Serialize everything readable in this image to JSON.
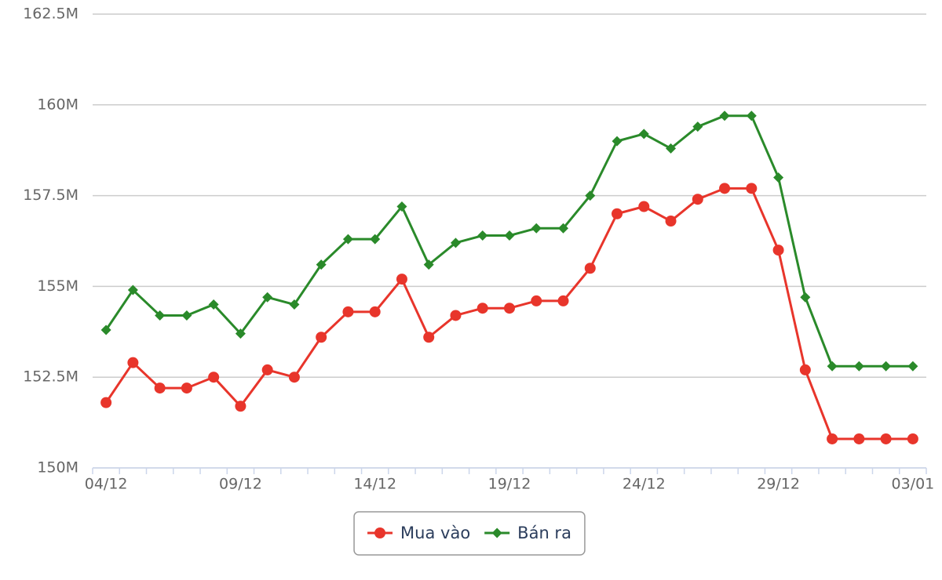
{
  "chart_data": {
    "type": "line",
    "categories": [
      "04/12",
      null,
      null,
      null,
      null,
      "09/12",
      null,
      null,
      null,
      null,
      "14/12",
      null,
      null,
      null,
      null,
      "19/12",
      null,
      null,
      null,
      null,
      "24/12",
      null,
      null,
      null,
      null,
      "29/12",
      null,
      null,
      null,
      null,
      "03/01"
    ],
    "series": [
      {
        "name": "Mua vào",
        "color": "#e8352b",
        "marker": "circle",
        "values": [
          151.8,
          152.9,
          152.2,
          152.2,
          152.5,
          151.7,
          152.7,
          152.5,
          153.6,
          154.3,
          154.3,
          155.2,
          153.6,
          154.2,
          154.4,
          154.4,
          154.6,
          154.6,
          155.5,
          157.0,
          157.2,
          156.8,
          157.4,
          157.7,
          157.7,
          156.0,
          152.7,
          150.8,
          150.8,
          150.8,
          150.8
        ]
      },
      {
        "name": "Bán ra",
        "color": "#2a8a2a",
        "marker": "diamond",
        "values": [
          153.8,
          154.9,
          154.2,
          154.2,
          154.5,
          153.7,
          154.7,
          154.5,
          155.6,
          156.3,
          156.3,
          157.2,
          155.6,
          156.2,
          156.4,
          156.4,
          156.6,
          156.6,
          157.5,
          159.0,
          159.2,
          158.8,
          159.4,
          159.7,
          159.7,
          158.0,
          154.7,
          152.8,
          152.8,
          152.8,
          152.8
        ]
      }
    ],
    "ylim": [
      150,
      162.5
    ],
    "yticks": [
      {
        "value": 150,
        "label": "150M"
      },
      {
        "value": 152.5,
        "label": "152.5M"
      },
      {
        "value": 155,
        "label": "155M"
      },
      {
        "value": 157.5,
        "label": "157.5M"
      },
      {
        "value": 160,
        "label": "160M"
      },
      {
        "value": 162.5,
        "label": "162.5M"
      }
    ],
    "grid": true,
    "legend": "bottom"
  }
}
